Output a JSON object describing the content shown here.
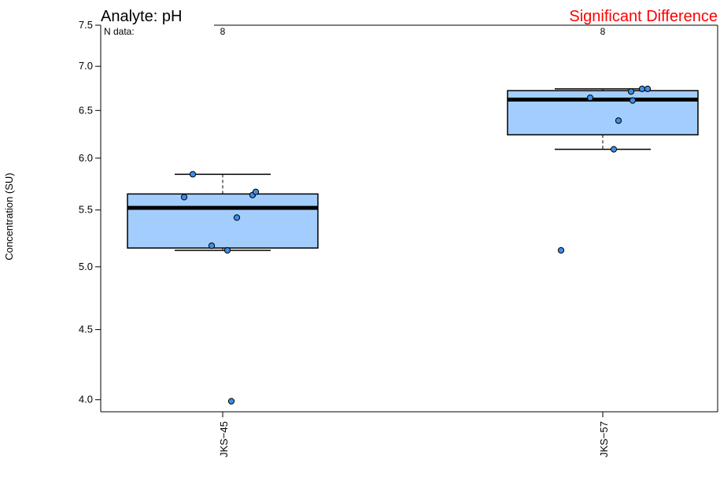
{
  "chart_data": {
    "type": "box",
    "title": "Analyte: pH",
    "annotation": "Significant Difference",
    "annotation_color": "#ff0000",
    "ylabel": "Concentration (SU)",
    "n_label": "N data:",
    "y_scale": "log",
    "ylim": [
      3.92,
      7.5
    ],
    "yticks": [
      4.0,
      4.5,
      5.0,
      5.5,
      6.0,
      6.5,
      7.0,
      7.5
    ],
    "box_fill": "#a3cdfc",
    "point_fill": "#3c8ee8",
    "categories": [
      "JKS−45",
      "JKS−57"
    ],
    "n": [
      8,
      8
    ],
    "boxes": [
      {
        "whisker_low": 5.14,
        "q1": 5.16,
        "median": 5.52,
        "q3": 5.65,
        "whisker_high": 5.84
      },
      {
        "whisker_low": 6.09,
        "q1": 6.24,
        "median": 6.62,
        "q3": 6.72,
        "whisker_high": 6.74
      }
    ],
    "points": [
      [
        5.84,
        5.62,
        5.64,
        5.67,
        5.43,
        5.18,
        5.14,
        3.99
      ],
      [
        6.74,
        6.74,
        6.71,
        6.64,
        6.61,
        6.39,
        6.09,
        5.14
      ]
    ]
  }
}
